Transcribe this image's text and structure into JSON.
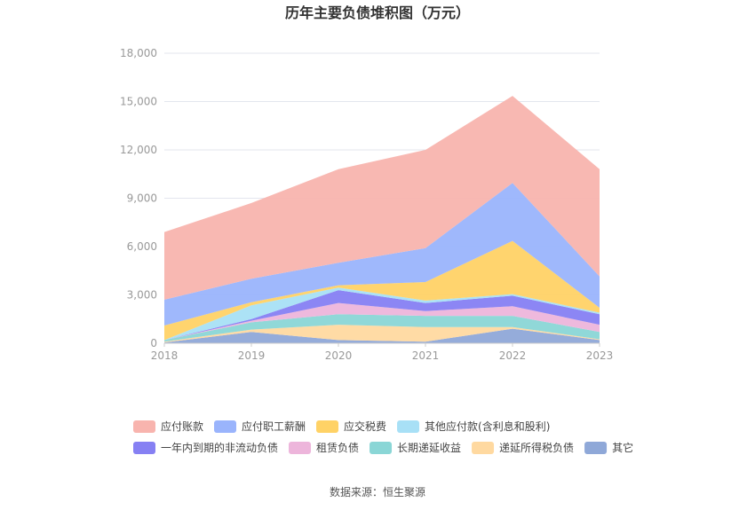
{
  "chart_data": {
    "type": "area",
    "stacked": true,
    "title": "历年主要负债堆积图（万元）",
    "source": "数据来源：恒生聚源",
    "categories": [
      "2018",
      "2019",
      "2020",
      "2021",
      "2022",
      "2023"
    ],
    "ylim": [
      0,
      18000
    ],
    "yticks": [
      "0",
      "3,000",
      "6,000",
      "9,000",
      "12,000",
      "15,000",
      "18,000"
    ],
    "grid": true,
    "legend_position": "bottom",
    "series": [
      {
        "name": "其它",
        "color": "#8FA8D8",
        "values": [
          50,
          700,
          200,
          100,
          900,
          200
        ]
      },
      {
        "name": "递延所得税负债",
        "color": "#FFD9A0",
        "values": [
          50,
          150,
          950,
          900,
          100,
          50
        ]
      },
      {
        "name": "长期递延收益",
        "color": "#8AD6D6",
        "values": [
          100,
          450,
          650,
          700,
          700,
          450
        ]
      },
      {
        "name": "租赁负债",
        "color": "#EDB5DB",
        "values": [
          0,
          100,
          700,
          300,
          600,
          450
        ]
      },
      {
        "name": "一年内到期的非流动负债",
        "color": "#8680F3",
        "values": [
          0,
          100,
          800,
          500,
          650,
          650
        ]
      },
      {
        "name": "其他应付款(含利息和股利)",
        "color": "#A8E0F6",
        "values": [
          0,
          850,
          150,
          150,
          100,
          100
        ]
      },
      {
        "name": "应交税费",
        "color": "#FFD266",
        "values": [
          900,
          200,
          150,
          1150,
          3300,
          300
        ]
      },
      {
        "name": "应付职工薪酬",
        "color": "#9AB4FC",
        "values": [
          1600,
          1450,
          1400,
          2100,
          3600,
          1950
        ]
      },
      {
        "name": "应付账款",
        "color": "#F8B4AE",
        "values": [
          4200,
          4700,
          5800,
          6100,
          5400,
          6650
        ]
      }
    ],
    "legend_order": [
      "应付账款",
      "应付职工薪酬",
      "应交税费",
      "其他应付款(含利息和股利)",
      "一年内到期的非流动负债",
      "租赁负债",
      "长期递延收益",
      "递延所得税负债",
      "其它"
    ]
  }
}
